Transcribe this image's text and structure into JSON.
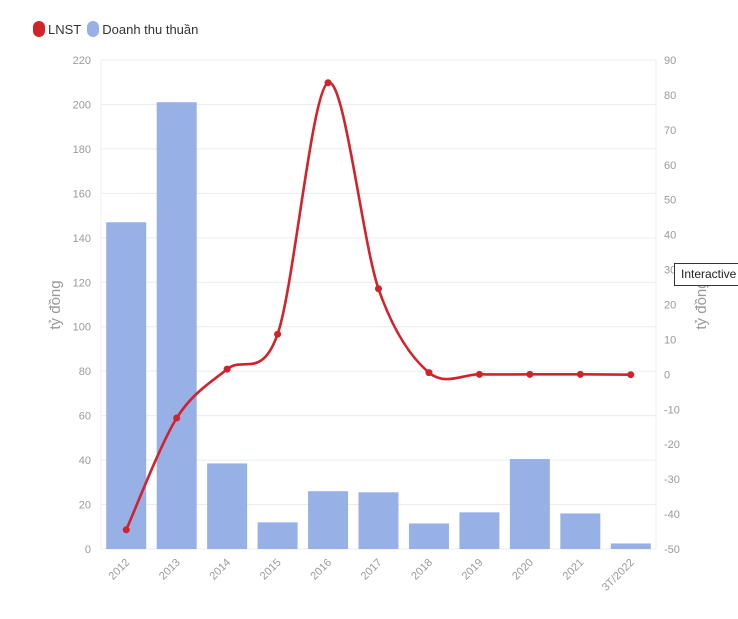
{
  "legend": {
    "line_label": "LNST",
    "bar_label": "Doanh thu thuần"
  },
  "tooltip": {
    "text": "Interactive"
  },
  "chart_data": {
    "type": "bar+line",
    "categories": [
      "2012",
      "2013",
      "2014",
      "2015",
      "2016",
      "2017",
      "2018",
      "2019",
      "2020",
      "2021",
      "3T/2022"
    ],
    "series": [
      {
        "name": "Doanh thu thuần",
        "type": "bar",
        "axis": "left",
        "color": "#97b1e7",
        "values": [
          147,
          201,
          38.5,
          12,
          26,
          25.5,
          11.5,
          16.5,
          40.5,
          16,
          2.5
        ]
      },
      {
        "name": "LNST",
        "type": "line",
        "axis": "right",
        "color": "#d0232b",
        "values": [
          -44.5,
          -12.5,
          1.5,
          11.5,
          83.5,
          24.5,
          0.5,
          0,
          0,
          0,
          -0.1
        ]
      }
    ],
    "left_axis": {
      "label": "tỷ đồng",
      "min": 0,
      "max": 220,
      "ticks": [
        0,
        20,
        40,
        60,
        80,
        100,
        120,
        140,
        160,
        180,
        200,
        220
      ]
    },
    "right_axis": {
      "label": "tỷ đồng",
      "min": -50,
      "max": 90,
      "ticks": [
        -50,
        -40,
        -30,
        -20,
        -10,
        0,
        10,
        20,
        30,
        40,
        50,
        60,
        70,
        80,
        90
      ]
    },
    "grid": true,
    "legend_position": "top-left"
  }
}
